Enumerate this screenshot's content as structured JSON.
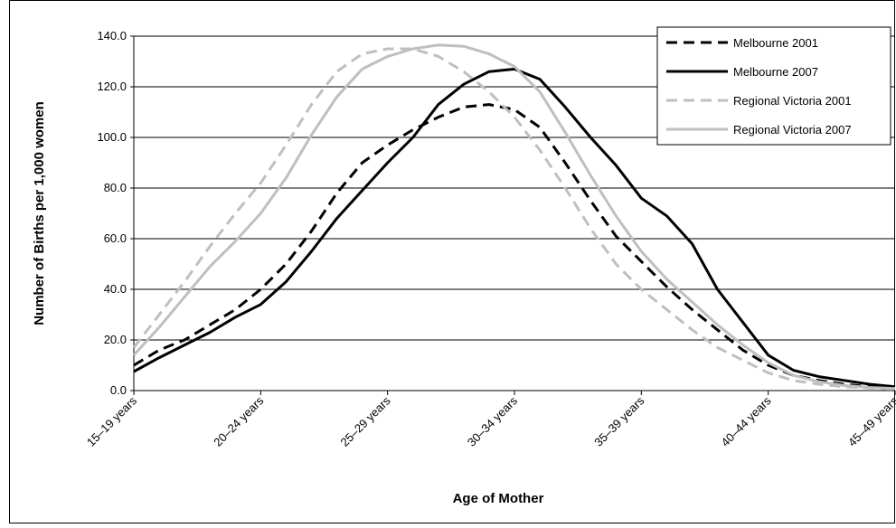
{
  "chart_data": {
    "type": "line",
    "x_label": "Age of Mother",
    "y_label": "Number of Births per 1,000 women",
    "categories": [
      "15–19 years",
      null,
      null,
      null,
      null,
      "20–24 years",
      null,
      null,
      null,
      null,
      "25–29 years",
      null,
      null,
      null,
      null,
      "30–34 years",
      null,
      null,
      null,
      null,
      "35–39 years",
      null,
      null,
      null,
      null,
      "40–44 years",
      null,
      null,
      null,
      null,
      "45–49 years"
    ],
    "ylim": [
      0,
      140
    ],
    "yticks": [
      {
        "value": 0,
        "label": "0.0"
      },
      {
        "value": 20,
        "label": "20.0"
      },
      {
        "value": 40,
        "label": "40.0"
      },
      {
        "value": 60,
        "label": "60.0"
      },
      {
        "value": 80,
        "label": "80.0"
      },
      {
        "value": 100,
        "label": "100.0"
      },
      {
        "value": 120,
        "label": "120.0"
      },
      {
        "value": 140,
        "label": "140.0"
      }
    ],
    "grid": true,
    "legend": "top-right",
    "series": [
      {
        "name": "Melbourne 2001",
        "color": "#000000",
        "dash": true,
        "values": [
          10,
          16,
          20,
          26,
          32,
          40,
          50,
          63,
          78,
          90,
          97,
          103,
          108,
          112,
          113,
          111,
          104,
          90,
          75,
          61,
          51,
          41,
          32,
          24,
          16,
          10,
          6,
          4,
          2.5,
          1.5,
          1
        ]
      },
      {
        "name": "Melbourne 2007",
        "color": "#000000",
        "dash": false,
        "values": [
          7.5,
          13,
          18,
          23,
          29,
          34,
          43,
          55,
          68,
          79,
          90,
          100,
          113,
          121,
          126,
          127,
          123,
          112,
          100,
          89,
          76,
          69,
          58,
          40,
          27,
          14,
          8,
          5.5,
          4,
          2.5,
          1.5
        ]
      },
      {
        "name": "Regional Victoria 2001",
        "color": "#bfbfbf",
        "dash": true,
        "values": [
          17,
          30,
          43,
          57,
          70,
          82,
          97,
          113,
          126,
          133,
          135,
          135,
          132,
          126,
          118,
          108,
          95,
          80,
          64,
          50,
          40,
          32,
          24,
          17,
          12,
          7,
          4,
          2.5,
          1.5,
          1,
          0.5
        ]
      },
      {
        "name": "Regional Victoria 2007",
        "color": "#bfbfbf",
        "dash": false,
        "values": [
          14,
          25,
          37,
          49,
          59,
          70,
          84,
          101,
          116,
          127,
          132,
          135,
          136.5,
          136,
          133,
          128,
          118,
          102,
          85,
          69,
          55,
          44,
          35,
          26,
          18,
          11,
          6,
          3.5,
          2,
          1.2,
          0.8
        ]
      }
    ]
  }
}
